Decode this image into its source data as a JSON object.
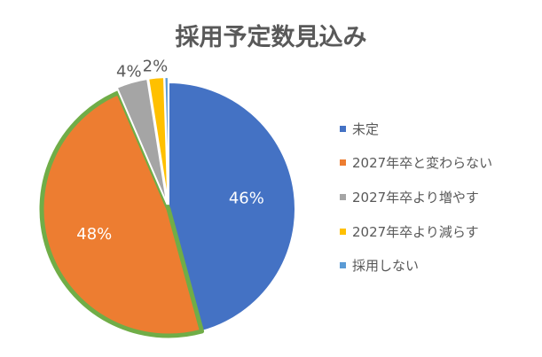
{
  "chart_data": {
    "type": "pie",
    "title": "採用予定数見込み",
    "legend_position": "right",
    "slices": [
      {
        "label": "未定",
        "value": 46,
        "display": "46%",
        "color": "#4472C4"
      },
      {
        "label": "2027年卒と変わらない",
        "value": 48,
        "display": "48%",
        "color": "#ED7D31"
      },
      {
        "label": "2027年卒より増やす",
        "value": 4,
        "display": "4%",
        "color": "#A5A5A5"
      },
      {
        "label": "2027年卒より減らす",
        "value": 2,
        "display": "2%",
        "color": "#FFC000"
      },
      {
        "label": "採用しない",
        "value": 0.5,
        "display": "",
        "color": "#5B9BD5"
      }
    ],
    "highlighted_slice": "2027年卒と変わらない",
    "highlight_color": "#70AD47"
  }
}
